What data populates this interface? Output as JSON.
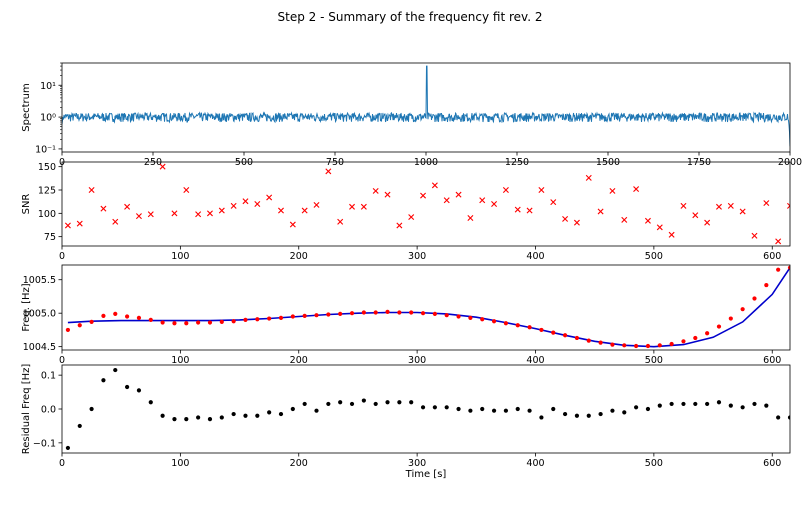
{
  "title": "Step 2 - Summary of the frequency fit rev. 2",
  "colors": {
    "spectrum": "#1f77b4",
    "snr": "#ff0000",
    "fit_points": "#ff0000",
    "fit_line": "#0000cc",
    "residual": "#000000"
  },
  "chart_data": [
    {
      "type": "line",
      "ylabel": "Spectrum",
      "xlim": [
        0,
        2000
      ],
      "ylim": [
        0.08,
        50
      ],
      "yscale": "log",
      "xticks": [
        0,
        250,
        500,
        750,
        1000,
        1250,
        1500,
        1750,
        2000
      ],
      "yticks": [
        0.1,
        1,
        10
      ],
      "yticklabels": [
        "10⁻¹",
        "10⁰",
        "10¹"
      ],
      "series": [
        {
          "values_description_free": true,
          "baseline": 1.0,
          "noise_range": [
            0.7,
            1.35
          ],
          "peak_x": 1002,
          "peak_y": 40,
          "end_drop_y": 0.12
        }
      ]
    },
    {
      "type": "scatter",
      "ylabel": "SNR",
      "xlim": [
        0,
        615
      ],
      "ylim": [
        65,
        155
      ],
      "xticks": [
        0,
        100,
        200,
        300,
        400,
        500,
        600
      ],
      "yticks": [
        75,
        100,
        125,
        150
      ],
      "marker": "x",
      "x": [
        5,
        15,
        25,
        35,
        45,
        55,
        65,
        75,
        85,
        95,
        105,
        115,
        125,
        135,
        145,
        155,
        165,
        175,
        185,
        195,
        205,
        215,
        225,
        235,
        245,
        255,
        265,
        275,
        285,
        295,
        305,
        315,
        325,
        335,
        345,
        355,
        365,
        375,
        385,
        395,
        405,
        415,
        425,
        435,
        445,
        455,
        465,
        475,
        485,
        495,
        505,
        515,
        525,
        535,
        545,
        555,
        565,
        575,
        585,
        595,
        605,
        615
      ],
      "y": [
        87,
        89,
        125,
        105,
        91,
        107,
        97,
        99,
        150,
        100,
        125,
        99,
        100,
        103,
        108,
        113,
        110,
        117,
        103,
        88,
        103,
        109,
        145,
        91,
        107,
        107,
        124,
        120,
        87,
        96,
        119,
        130,
        114,
        120,
        95,
        114,
        110,
        125,
        104,
        103,
        125,
        112,
        94,
        90,
        138,
        102,
        124,
        93,
        126,
        92,
        85,
        77,
        108,
        98,
        90,
        107,
        108,
        102,
        76,
        111,
        70,
        108
      ]
    },
    {
      "type": "scatter",
      "ylabel": "Freq. [Hz]",
      "xlim": [
        0,
        615
      ],
      "ylim": [
        1004.45,
        1005.72
      ],
      "xticks": [
        0,
        100,
        200,
        300,
        400,
        500,
        600
      ],
      "yticks": [
        1004.5,
        1005.0,
        1005.5
      ],
      "yticklabels": [
        "1004.5",
        "1005.0",
        "1005.5"
      ],
      "points_x": [
        5,
        15,
        25,
        35,
        45,
        55,
        65,
        75,
        85,
        95,
        105,
        115,
        125,
        135,
        145,
        155,
        165,
        175,
        185,
        195,
        205,
        215,
        225,
        235,
        245,
        255,
        265,
        275,
        285,
        295,
        305,
        315,
        325,
        335,
        345,
        355,
        365,
        375,
        385,
        395,
        405,
        415,
        425,
        435,
        445,
        455,
        465,
        475,
        485,
        495,
        505,
        515,
        525,
        535,
        545,
        555,
        565,
        575,
        585,
        595,
        605,
        615
      ],
      "points_y": [
        1004.75,
        1004.82,
        1004.87,
        1004.96,
        1004.99,
        1004.95,
        1004.93,
        1004.9,
        1004.86,
        1004.85,
        1004.85,
        1004.86,
        1004.86,
        1004.87,
        1004.88,
        1004.9,
        1004.91,
        1004.92,
        1004.93,
        1004.95,
        1004.96,
        1004.97,
        1004.98,
        1004.99,
        1005.0,
        1005.01,
        1005.01,
        1005.02,
        1005.01,
        1005.01,
        1005.0,
        1004.99,
        1004.97,
        1004.95,
        1004.93,
        1004.91,
        1004.88,
        1004.85,
        1004.82,
        1004.79,
        1004.75,
        1004.71,
        1004.67,
        1004.63,
        1004.59,
        1004.56,
        1004.53,
        1004.52,
        1004.51,
        1004.51,
        1004.52,
        1004.54,
        1004.58,
        1004.63,
        1004.7,
        1004.8,
        1004.92,
        1005.06,
        1005.22,
        1005.42,
        1005.65,
        1005.68
      ],
      "fit_x": [
        5,
        25,
        50,
        75,
        100,
        125,
        150,
        175,
        200,
        225,
        250,
        275,
        300,
        325,
        350,
        375,
        400,
        425,
        450,
        475,
        500,
        525,
        550,
        575,
        600,
        615
      ],
      "fit_y": [
        1004.86,
        1004.88,
        1004.89,
        1004.89,
        1004.89,
        1004.89,
        1004.9,
        1004.92,
        1004.95,
        1004.98,
        1005.0,
        1005.01,
        1005.01,
        1004.99,
        1004.94,
        1004.86,
        1004.77,
        1004.67,
        1004.58,
        1004.52,
        1004.5,
        1004.53,
        1004.64,
        1004.87,
        1005.28,
        1005.68
      ]
    },
    {
      "type": "scatter",
      "xlabel": "Time [s]",
      "ylabel": "Residual Freq [Hz]",
      "xlim": [
        0,
        615
      ],
      "ylim": [
        -0.13,
        0.13
      ],
      "xticks": [
        0,
        100,
        200,
        300,
        400,
        500,
        600
      ],
      "yticks": [
        -0.1,
        0.0,
        0.1
      ],
      "yticklabels": [
        "−0.1",
        "0.0",
        "0.1"
      ],
      "x": [
        5,
        15,
        25,
        35,
        45,
        55,
        65,
        75,
        85,
        95,
        105,
        115,
        125,
        135,
        145,
        155,
        165,
        175,
        185,
        195,
        205,
        215,
        225,
        235,
        245,
        255,
        265,
        275,
        285,
        295,
        305,
        315,
        325,
        335,
        345,
        355,
        365,
        375,
        385,
        395,
        405,
        415,
        425,
        435,
        445,
        455,
        465,
        475,
        485,
        495,
        505,
        515,
        525,
        535,
        545,
        555,
        565,
        575,
        585,
        595,
        605,
        615
      ],
      "y": [
        -0.115,
        -0.05,
        0.0,
        0.085,
        0.115,
        0.065,
        0.055,
        0.02,
        -0.02,
        -0.03,
        -0.03,
        -0.025,
        -0.03,
        -0.025,
        -0.015,
        -0.02,
        -0.02,
        -0.01,
        -0.015,
        0.0,
        0.015,
        -0.005,
        0.015,
        0.02,
        0.015,
        0.025,
        0.015,
        0.02,
        0.02,
        0.02,
        0.005,
        0.005,
        0.005,
        0.0,
        -0.005,
        0.0,
        -0.005,
        -0.005,
        0.0,
        -0.005,
        -0.025,
        0.0,
        -0.015,
        -0.02,
        -0.02,
        -0.015,
        -0.005,
        -0.01,
        0.005,
        0.0,
        0.01,
        0.015,
        0.015,
        0.015,
        0.015,
        0.02,
        0.01,
        0.005,
        0.015,
        0.01,
        -0.025,
        -0.025
      ]
    }
  ]
}
